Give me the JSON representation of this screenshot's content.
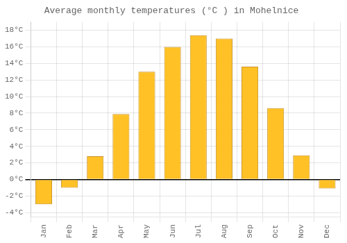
{
  "chart_data": {
    "type": "bar",
    "title": "Average monthly temperatures (°C ) in Mohelnice",
    "categories": [
      "Jan",
      "Feb",
      "Mar",
      "Apr",
      "May",
      "Jun",
      "Jul",
      "Aug",
      "Sep",
      "Oct",
      "Nov",
      "Dec"
    ],
    "values": [
      -3.0,
      -1.0,
      2.8,
      7.9,
      13.0,
      16.0,
      17.4,
      17.0,
      13.6,
      8.6,
      2.9,
      -1.1
    ],
    "color": "#FFC125",
    "ylim": [
      -4.5,
      19
    ],
    "yticks": [
      {
        "value": -4,
        "label": "-4°C"
      },
      {
        "value": -2,
        "label": "-2°C"
      },
      {
        "value": 0,
        "label": "0°C"
      },
      {
        "value": 2,
        "label": "2°C"
      },
      {
        "value": 4,
        "label": "4°C"
      },
      {
        "value": 6,
        "label": "6°C"
      },
      {
        "value": 8,
        "label": "8°C"
      },
      {
        "value": 10,
        "label": "10°C"
      },
      {
        "value": 12,
        "label": "12°C"
      },
      {
        "value": 14,
        "label": "14°C"
      },
      {
        "value": 16,
        "label": "16°C"
      },
      {
        "value": 18,
        "label": "18°C"
      }
    ],
    "grid": true
  }
}
